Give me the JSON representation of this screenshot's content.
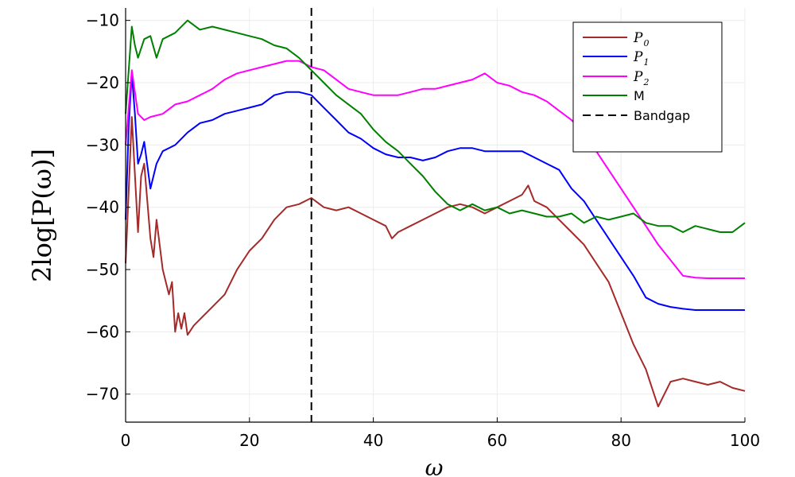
{
  "chart_data": {
    "type": "line",
    "xlabel": "ω",
    "ylabel": "2log[P(ω)]",
    "xlim": [
      0,
      100
    ],
    "ylim": [
      -74.5,
      -8
    ],
    "xticks": [
      0,
      20,
      40,
      60,
      80,
      100
    ],
    "yticks": [
      -70,
      -60,
      -50,
      -40,
      -30,
      -20,
      -10
    ],
    "grid": true,
    "legend_position": "top-right",
    "vline": {
      "x": 30,
      "name": "Bandgap",
      "color": "#000000",
      "style": "dashed"
    },
    "series": [
      {
        "name": "P0",
        "color": "#a52a2a",
        "x": [
          0,
          1,
          2,
          2.5,
          3,
          4,
          4.5,
          5,
          6,
          7,
          7.5,
          8,
          8.5,
          9,
          9.5,
          10,
          11,
          12,
          14,
          16,
          18,
          20,
          22,
          24,
          26,
          28,
          30,
          32,
          34,
          36,
          38,
          40,
          42,
          43,
          44,
          46,
          48,
          50,
          52,
          54,
          56,
          58,
          60,
          62,
          64,
          65,
          66,
          68,
          70,
          72,
          74,
          76,
          78,
          80,
          82,
          84,
          85,
          86,
          88,
          90,
          92,
          94,
          96,
          98,
          100
        ],
        "y": [
          -49,
          -25.5,
          -44,
          -35,
          -33,
          -45,
          -48,
          -42,
          -50,
          -54,
          -52,
          -60,
          -57,
          -59.5,
          -57,
          -60.5,
          -59,
          -58,
          -56,
          -54,
          -50,
          -47,
          -45,
          -42,
          -40,
          -39.5,
          -38.5,
          -40,
          -40.5,
          -40,
          -41,
          -42,
          -43,
          -45,
          -44,
          -43,
          -42,
          -41,
          -40,
          -39.5,
          -40,
          -41,
          -40,
          -39,
          -38,
          -36.5,
          -39,
          -40,
          -42,
          -44,
          -46,
          -49,
          -52,
          -57,
          -62,
          -66,
          -69,
          -72,
          -68,
          -67.5,
          -68,
          -68.5,
          -68,
          -69,
          -69.5
        ]
      },
      {
        "name": "P1",
        "color": "#0000ff",
        "x": [
          0,
          0.5,
          1,
          1.5,
          2,
          2.5,
          3,
          4,
          5,
          6,
          8,
          10,
          12,
          14,
          16,
          18,
          20,
          22,
          24,
          26,
          28,
          30,
          32,
          34,
          36,
          38,
          40,
          42,
          44,
          46,
          48,
          50,
          52,
          54,
          56,
          58,
          60,
          62,
          64,
          66,
          68,
          70,
          72,
          74,
          76,
          78,
          80,
          82,
          84,
          86,
          88,
          90,
          92,
          94,
          96,
          98,
          100
        ],
        "y": [
          -42,
          -27,
          -18.5,
          -25,
          -33,
          -31.5,
          -29.5,
          -37,
          -33,
          -31,
          -30,
          -28,
          -26.5,
          -26,
          -25,
          -24.5,
          -24,
          -23.5,
          -22,
          -21.5,
          -21.5,
          -22,
          -24,
          -26,
          -28,
          -29,
          -30.5,
          -31.5,
          -32,
          -32,
          -32.5,
          -32,
          -31,
          -30.5,
          -30.5,
          -31,
          -31,
          -31,
          -31,
          -32,
          -33,
          -34,
          -37,
          -39,
          -42,
          -45,
          -48,
          -51,
          -54.5,
          -55.5,
          -56,
          -56.3,
          -56.5,
          -56.5,
          -56.5,
          -56.5,
          -56.5
        ]
      },
      {
        "name": "P2",
        "color": "#ff00ff",
        "x": [
          0,
          1,
          2,
          3,
          4,
          6,
          8,
          10,
          12,
          14,
          16,
          18,
          20,
          22,
          24,
          26,
          28,
          30,
          32,
          34,
          36,
          38,
          40,
          42,
          44,
          46,
          48,
          50,
          52,
          54,
          56,
          58,
          60,
          62,
          64,
          66,
          68,
          70,
          72,
          74,
          76,
          78,
          80,
          82,
          84,
          86,
          88,
          90,
          92,
          94,
          96,
          98,
          100
        ],
        "y": [
          -30,
          -18,
          -25,
          -26,
          -25.5,
          -25,
          -23.5,
          -23,
          -22,
          -21,
          -19.5,
          -18.5,
          -18,
          -17.5,
          -17,
          -16.5,
          -16.5,
          -17.5,
          -18,
          -19.5,
          -21,
          -21.5,
          -22,
          -22,
          -22,
          -21.5,
          -21,
          -21,
          -20.5,
          -20,
          -19.5,
          -18.5,
          -20,
          -20.5,
          -21.5,
          -22,
          -23,
          -24.5,
          -26,
          -28,
          -31,
          -34,
          -37,
          -40,
          -43,
          -46,
          -48.5,
          -51,
          -51.3,
          -51.4,
          -51.4,
          -51.4,
          -51.4
        ]
      },
      {
        "name": "M",
        "color": "#008000",
        "x": [
          0,
          0.5,
          1,
          1.5,
          2,
          3,
          4,
          5,
          6,
          8,
          10,
          12,
          14,
          16,
          18,
          20,
          22,
          24,
          26,
          28,
          30,
          32,
          34,
          36,
          38,
          40,
          42,
          44,
          46,
          48,
          50,
          52,
          54,
          56,
          58,
          60,
          62,
          64,
          66,
          68,
          70,
          72,
          74,
          76,
          78,
          80,
          82,
          84,
          86,
          88,
          90,
          92,
          94,
          96,
          98,
          100
        ],
        "y": [
          -25,
          -18,
          -11,
          -14,
          -16,
          -13,
          -12.5,
          -16,
          -13,
          -12,
          -10,
          -11.5,
          -11,
          -11.5,
          -12,
          -12.5,
          -13,
          -14,
          -14.5,
          -16,
          -18,
          -20,
          -22,
          -23.5,
          -25,
          -27.5,
          -29.5,
          -31,
          -33,
          -35,
          -37.5,
          -39.5,
          -40.5,
          -39.5,
          -40.5,
          -40,
          -41,
          -40.5,
          -41,
          -41.5,
          -41.5,
          -41,
          -42.5,
          -41.5,
          -42,
          -41.5,
          -41,
          -42.5,
          -43,
          -43,
          -44,
          -43,
          -43.5,
          -44,
          -44,
          -42.5
        ]
      }
    ]
  },
  "legend": {
    "p0_base": "P",
    "p0_sub": "0",
    "p1_base": "P",
    "p1_sub": "1",
    "p2_base": "P",
    "p2_sub": "2",
    "m_label": "M",
    "bandgap_label": "Bandgap"
  }
}
